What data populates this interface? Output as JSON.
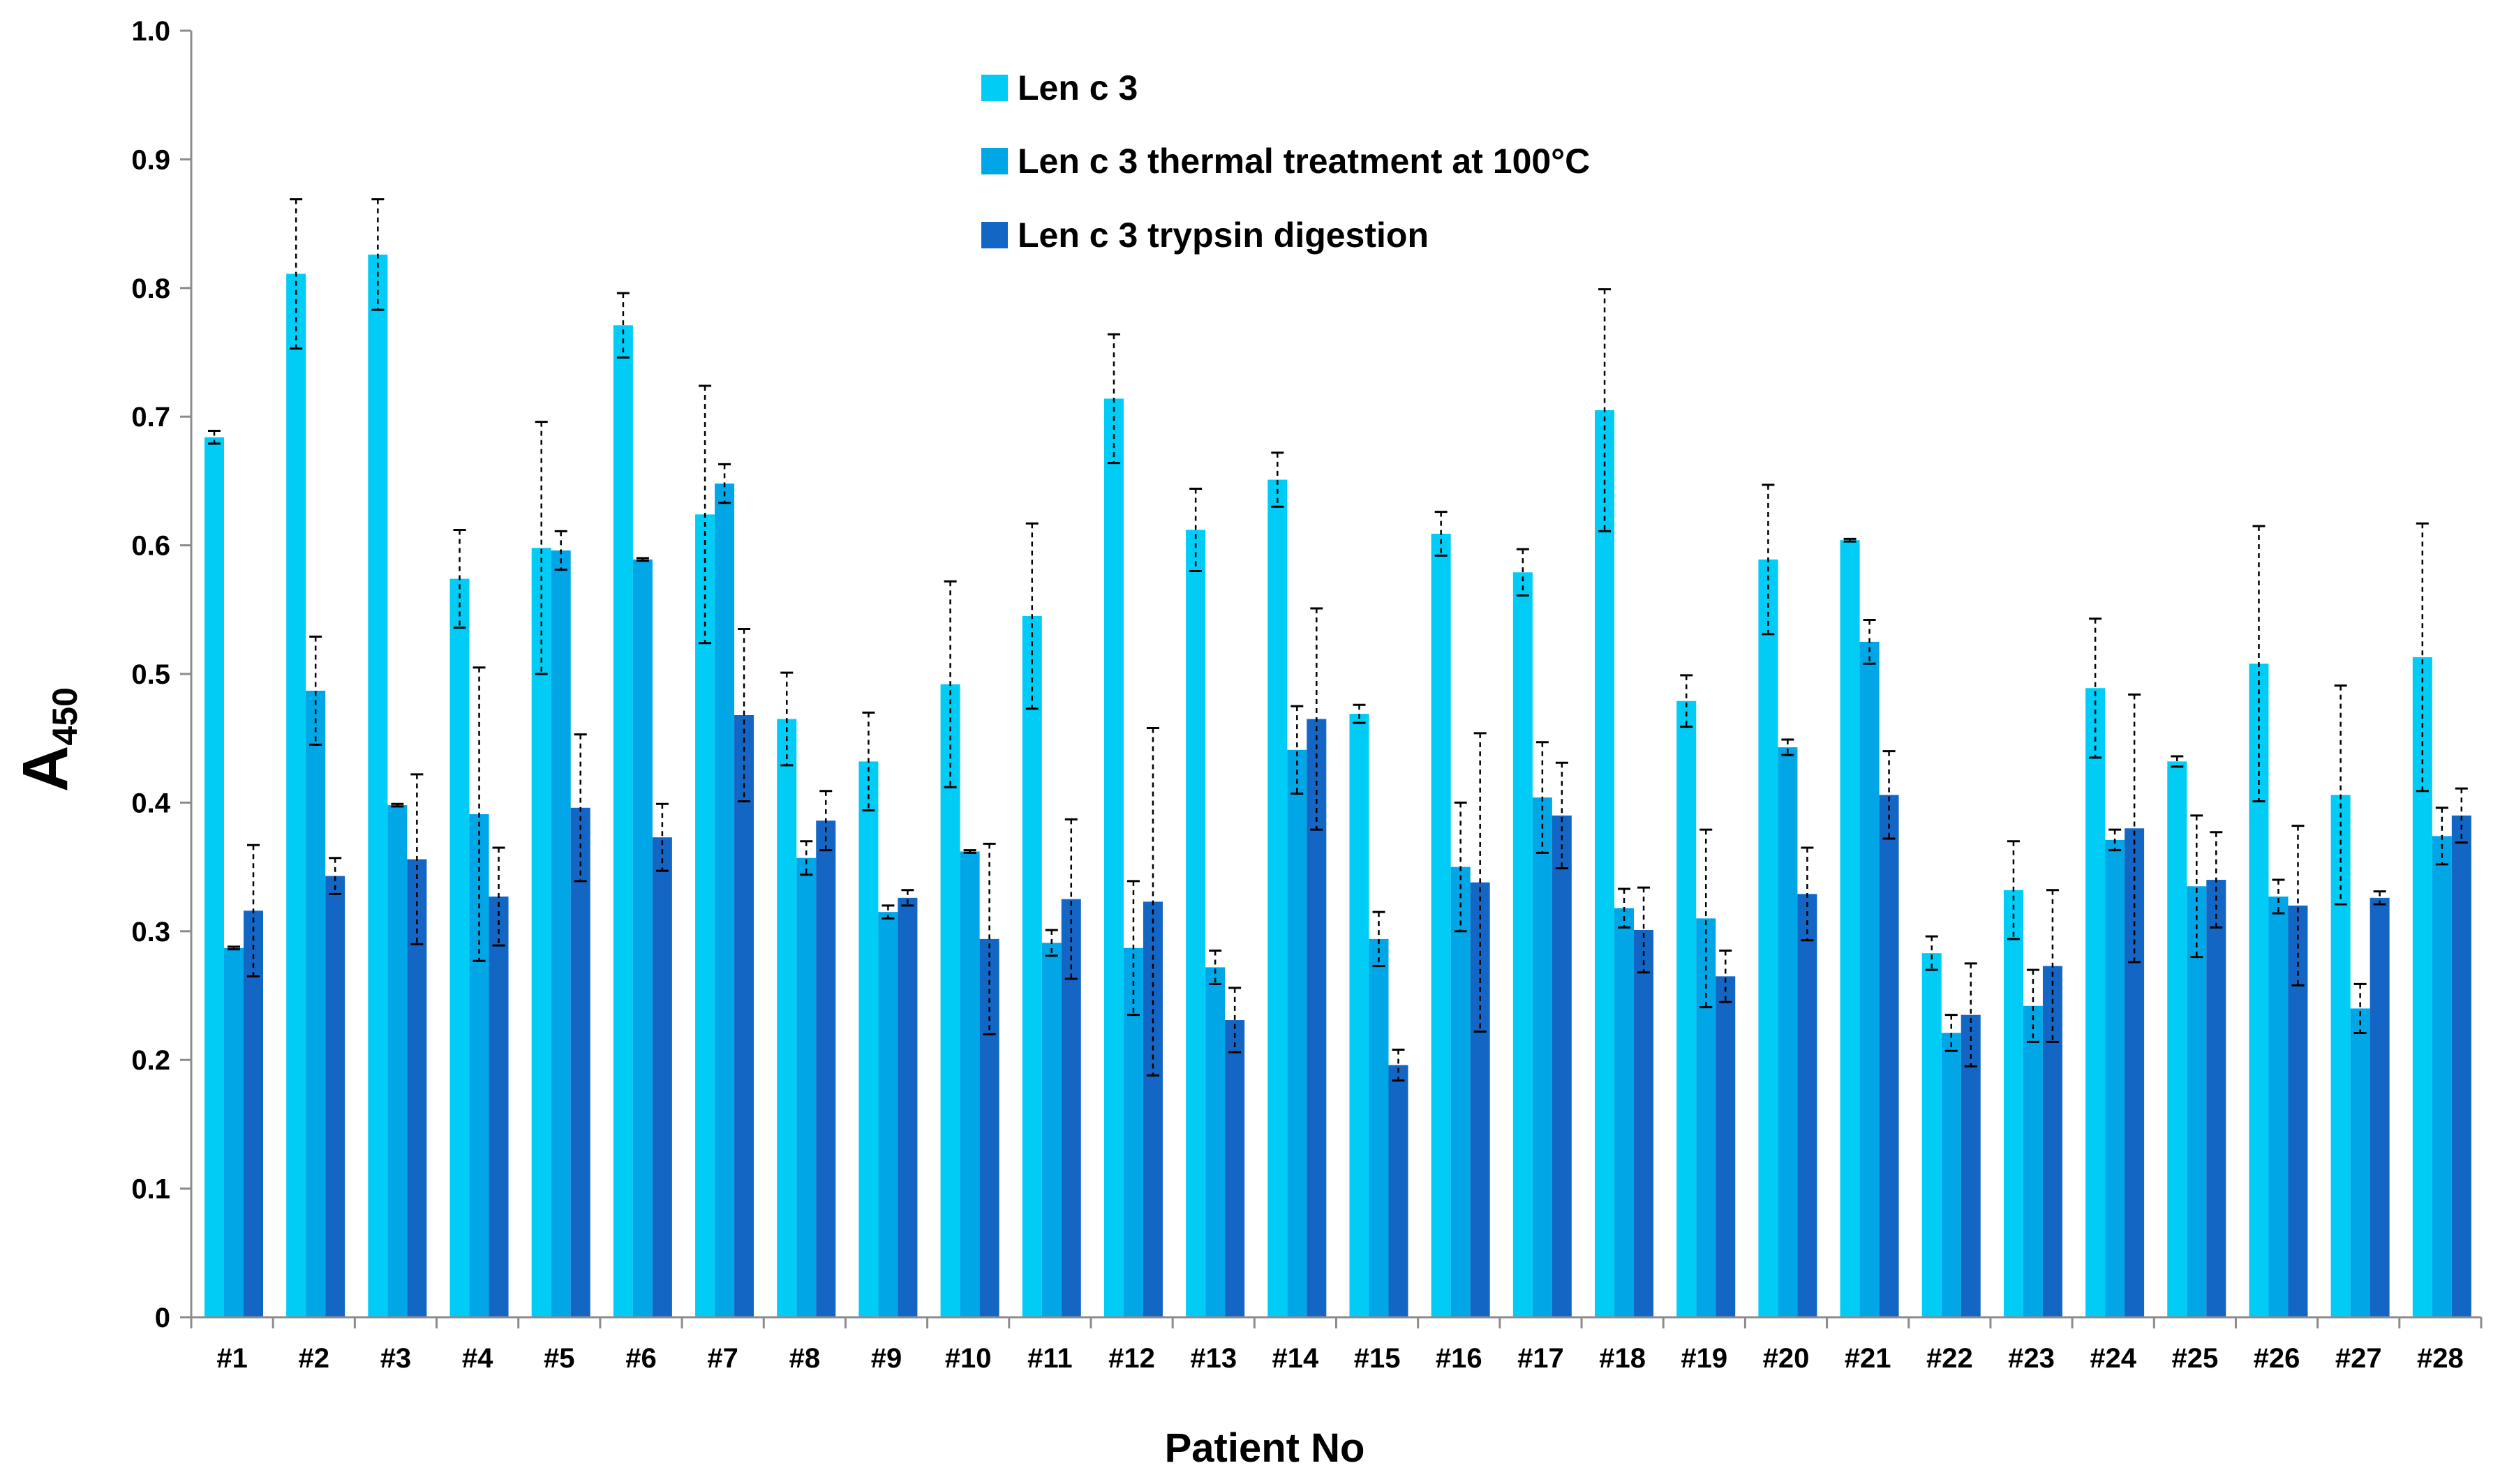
{
  "chart_data": {
    "type": "bar",
    "title": "",
    "xlabel": "Patient No",
    "ylabel_main": "A",
    "ylabel_sub": "450",
    "ylim": [
      0,
      1.0
    ],
    "y_ticks": [
      "0",
      "0.1",
      "0.2",
      "0.3",
      "0.4",
      "0.5",
      "0.6",
      "0.7",
      "0.8",
      "0.9",
      "1.0"
    ],
    "grid": false,
    "legend_position": "top-center",
    "categories": [
      "#1",
      "#2",
      "#3",
      "#4",
      "#5",
      "#6",
      "#7",
      "#8",
      "#9",
      "#10",
      "#11",
      "#12",
      "#13",
      "#14",
      "#15",
      "#16",
      "#17",
      "#18",
      "#19",
      "#20",
      "#21",
      "#22",
      "#23",
      "#24",
      "#25",
      "#26",
      "#27",
      "#28"
    ],
    "series": [
      {
        "name": "Len c 3",
        "color": "#00CCF5",
        "values": [
          0.684,
          0.811,
          0.826,
          0.574,
          0.598,
          0.771,
          0.624,
          0.465,
          0.432,
          0.492,
          0.545,
          0.714,
          0.612,
          0.651,
          0.469,
          0.609,
          0.579,
          0.705,
          0.479,
          0.589,
          0.604,
          0.283,
          0.332,
          0.489,
          0.432,
          0.508,
          0.406,
          0.513
        ],
        "errors": [
          0.005,
          0.058,
          0.043,
          0.038,
          0.098,
          0.025,
          0.1,
          0.036,
          0.038,
          0.08,
          0.072,
          0.05,
          0.032,
          0.021,
          0.007,
          0.017,
          0.018,
          0.094,
          0.02,
          0.058,
          0.001,
          0.013,
          0.038,
          0.054,
          0.004,
          0.107,
          0.085,
          0.104
        ]
      },
      {
        "name": "Len c 3 thermal treatment at 100°C",
        "color": "#00A6E6",
        "values": [
          0.287,
          0.487,
          0.398,
          0.391,
          0.596,
          0.589,
          0.648,
          0.357,
          0.315,
          0.362,
          0.291,
          0.287,
          0.272,
          0.441,
          0.294,
          0.35,
          0.404,
          0.318,
          0.31,
          0.443,
          0.525,
          0.221,
          0.242,
          0.371,
          0.335,
          0.327,
          0.24,
          0.374
        ],
        "errors": [
          0.001,
          0.042,
          0.001,
          0.114,
          0.015,
          0.001,
          0.015,
          0.013,
          0.005,
          0.001,
          0.01,
          0.052,
          0.013,
          0.034,
          0.021,
          0.05,
          0.043,
          0.015,
          0.069,
          0.006,
          0.017,
          0.014,
          0.028,
          0.008,
          0.055,
          0.013,
          0.019,
          0.022
        ]
      },
      {
        "name": "Len c 3 trypsin digestion",
        "color": "#1466C4",
        "values": [
          0.316,
          0.343,
          0.356,
          0.327,
          0.396,
          0.373,
          0.468,
          0.386,
          0.326,
          0.294,
          0.325,
          0.323,
          0.231,
          0.465,
          0.196,
          0.338,
          0.39,
          0.301,
          0.265,
          0.329,
          0.406,
          0.235,
          0.273,
          0.38,
          0.34,
          0.32,
          0.326,
          0.39
        ],
        "errors": [
          0.051,
          0.014,
          0.066,
          0.038,
          0.057,
          0.026,
          0.067,
          0.023,
          0.006,
          0.074,
          0.062,
          0.135,
          0.025,
          0.086,
          0.012,
          0.116,
          0.041,
          0.033,
          0.02,
          0.036,
          0.034,
          0.04,
          0.059,
          0.104,
          0.037,
          0.062,
          0.005,
          0.021
        ]
      }
    ]
  }
}
